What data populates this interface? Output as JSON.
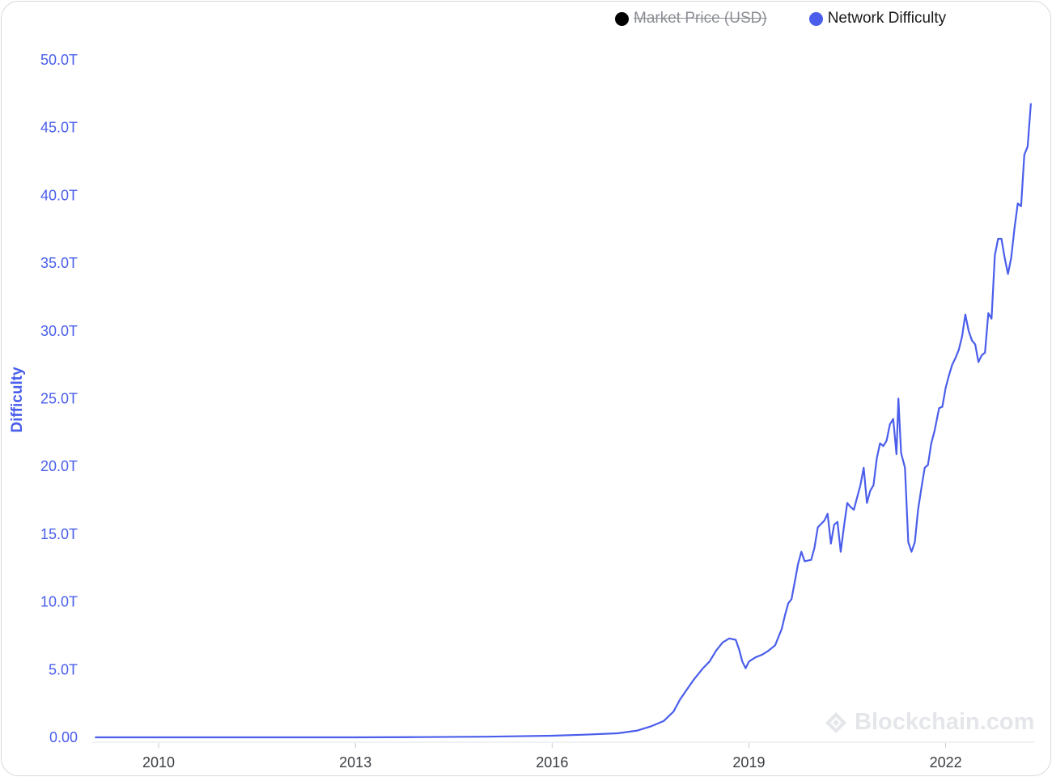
{
  "legend": [
    {
      "label": "Market Price (USD)",
      "color": "#000000",
      "hidden": true
    },
    {
      "label": "Network Difficulty",
      "color": "#4a5eeb",
      "hidden": false
    }
  ],
  "watermark": "Blockchain.com",
  "accent_color": "#4a5eeb",
  "chart_data": {
    "type": "line",
    "title": "",
    "xlabel": "",
    "ylabel": "Difficulty",
    "xlim": [
      2009.0,
      2023.35
    ],
    "ylim": [
      0,
      50
    ],
    "y_unit": "T",
    "x_ticks": [
      {
        "value": 2010,
        "label": "2010"
      },
      {
        "value": 2013,
        "label": "2013"
      },
      {
        "value": 2016,
        "label": "2016"
      },
      {
        "value": 2019,
        "label": "2019"
      },
      {
        "value": 2022,
        "label": "2022"
      }
    ],
    "y_ticks": [
      {
        "value": 0,
        "label": "0.00"
      },
      {
        "value": 5,
        "label": "5.0T"
      },
      {
        "value": 10,
        "label": "10.0T"
      },
      {
        "value": 15,
        "label": "15.0T"
      },
      {
        "value": 20,
        "label": "20.0T"
      },
      {
        "value": 25,
        "label": "25.0T"
      },
      {
        "value": 30,
        "label": "30.0T"
      },
      {
        "value": 35,
        "label": "35.0T"
      },
      {
        "value": 40,
        "label": "40.0T"
      },
      {
        "value": 45,
        "label": "45.0T"
      },
      {
        "value": 50,
        "label": "50.0T"
      }
    ],
    "grid": false,
    "legend_position": "top-right",
    "series": [
      {
        "name": "Network Difficulty",
        "color": "#4a5eeb",
        "points": [
          [
            2009.03,
            0.0
          ],
          [
            2013.0,
            0.0
          ],
          [
            2014.0,
            0.02
          ],
          [
            2015.0,
            0.05
          ],
          [
            2016.0,
            0.12
          ],
          [
            2016.5,
            0.2
          ],
          [
            2017.0,
            0.3
          ],
          [
            2017.3,
            0.5
          ],
          [
            2017.5,
            0.8
          ],
          [
            2017.7,
            1.2
          ],
          [
            2017.85,
            1.9
          ],
          [
            2017.95,
            2.8
          ],
          [
            2018.05,
            3.5
          ],
          [
            2018.15,
            4.2
          ],
          [
            2018.3,
            5.1
          ],
          [
            2018.4,
            5.6
          ],
          [
            2018.5,
            6.4
          ],
          [
            2018.6,
            7.0
          ],
          [
            2018.7,
            7.3
          ],
          [
            2018.8,
            7.2
          ],
          [
            2018.85,
            6.5
          ],
          [
            2018.9,
            5.6
          ],
          [
            2018.95,
            5.1
          ],
          [
            2019.0,
            5.6
          ],
          [
            2019.1,
            5.9
          ],
          [
            2019.2,
            6.1
          ],
          [
            2019.3,
            6.4
          ],
          [
            2019.4,
            6.8
          ],
          [
            2019.5,
            8.0
          ],
          [
            2019.55,
            9.0
          ],
          [
            2019.6,
            9.9
          ],
          [
            2019.65,
            10.2
          ],
          [
            2019.7,
            11.5
          ],
          [
            2019.75,
            12.8
          ],
          [
            2019.8,
            13.7
          ],
          [
            2019.85,
            13.0
          ],
          [
            2019.95,
            13.1
          ],
          [
            2020.0,
            14.0
          ],
          [
            2020.05,
            15.5
          ],
          [
            2020.15,
            16.0
          ],
          [
            2020.2,
            16.5
          ],
          [
            2020.25,
            14.3
          ],
          [
            2020.3,
            15.7
          ],
          [
            2020.35,
            15.9
          ],
          [
            2020.4,
            13.7
          ],
          [
            2020.45,
            15.6
          ],
          [
            2020.5,
            17.3
          ],
          [
            2020.55,
            17.0
          ],
          [
            2020.6,
            16.8
          ],
          [
            2020.7,
            18.6
          ],
          [
            2020.75,
            19.9
          ],
          [
            2020.8,
            17.3
          ],
          [
            2020.85,
            18.2
          ],
          [
            2020.9,
            18.6
          ],
          [
            2020.95,
            20.6
          ],
          [
            2021.0,
            21.7
          ],
          [
            2021.05,
            21.5
          ],
          [
            2021.1,
            21.9
          ],
          [
            2021.15,
            23.1
          ],
          [
            2021.2,
            23.5
          ],
          [
            2021.25,
            20.9
          ],
          [
            2021.28,
            25.0
          ],
          [
            2021.32,
            21.0
          ],
          [
            2021.38,
            19.9
          ],
          [
            2021.43,
            14.4
          ],
          [
            2021.48,
            13.7
          ],
          [
            2021.53,
            14.4
          ],
          [
            2021.58,
            16.8
          ],
          [
            2021.63,
            18.4
          ],
          [
            2021.68,
            19.9
          ],
          [
            2021.73,
            20.1
          ],
          [
            2021.78,
            21.7
          ],
          [
            2021.83,
            22.6
          ],
          [
            2021.9,
            24.3
          ],
          [
            2021.95,
            24.4
          ],
          [
            2022.0,
            25.8
          ],
          [
            2022.05,
            26.7
          ],
          [
            2022.1,
            27.5
          ],
          [
            2022.15,
            28.0
          ],
          [
            2022.2,
            28.6
          ],
          [
            2022.25,
            29.6
          ],
          [
            2022.3,
            31.2
          ],
          [
            2022.35,
            30.0
          ],
          [
            2022.4,
            29.3
          ],
          [
            2022.45,
            29.0
          ],
          [
            2022.5,
            27.7
          ],
          [
            2022.55,
            28.2
          ],
          [
            2022.6,
            28.4
          ],
          [
            2022.65,
            31.3
          ],
          [
            2022.7,
            30.9
          ],
          [
            2022.75,
            35.6
          ],
          [
            2022.8,
            36.8
          ],
          [
            2022.85,
            36.8
          ],
          [
            2022.9,
            35.4
          ],
          [
            2022.95,
            34.2
          ],
          [
            2023.0,
            35.4
          ],
          [
            2023.05,
            37.6
          ],
          [
            2023.1,
            39.4
          ],
          [
            2023.15,
            39.2
          ],
          [
            2023.2,
            43.0
          ],
          [
            2023.25,
            43.6
          ],
          [
            2023.3,
            46.8
          ]
        ]
      }
    ]
  }
}
